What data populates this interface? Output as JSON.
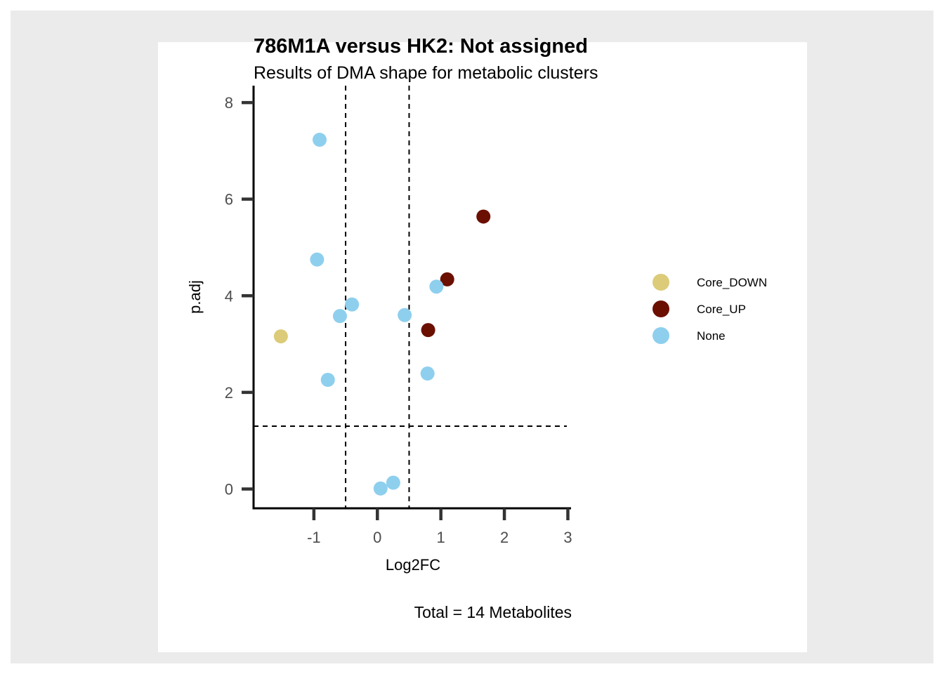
{
  "chart_data": {
    "type": "scatter",
    "title": "786M1A versus HK2: Not assigned",
    "subtitle": "Results of DMA shape for metabolic clusters",
    "xlabel": "Log2FC",
    "ylabel": "p.adj",
    "caption": "Total = 14 Metabolites",
    "xlim": [
      -1.95,
      3.05
    ],
    "ylim": [
      -0.4,
      8.35
    ],
    "xticks": [
      -1,
      0,
      1,
      2,
      3
    ],
    "xtick_labels": [
      "-1",
      "0",
      "1",
      "2",
      "3"
    ],
    "yticks": [
      0,
      2,
      4,
      6,
      8
    ],
    "ytick_labels": [
      "0",
      "2",
      "4",
      "6",
      "8"
    ],
    "thresholds": {
      "x": [
        -0.5,
        0.5
      ],
      "y": [
        1.3
      ]
    },
    "grid": false,
    "legend_position": "right",
    "colors": {
      "Core_DOWN": "#dccb78",
      "Core_UP": "#6b0f00",
      "None": "#8ecfee"
    },
    "series": [
      {
        "name": "Core_DOWN",
        "points": [
          {
            "x": -1.52,
            "y": 3.16
          }
        ]
      },
      {
        "name": "Core_UP",
        "points": [
          {
            "x": 1.67,
            "y": 5.64
          },
          {
            "x": 1.1,
            "y": 4.34
          },
          {
            "x": 0.8,
            "y": 3.29
          }
        ]
      },
      {
        "name": "None",
        "points": [
          {
            "x": -0.91,
            "y": 7.23
          },
          {
            "x": -0.95,
            "y": 4.75
          },
          {
            "x": 0.93,
            "y": 4.19
          },
          {
            "x": -0.4,
            "y": 3.82
          },
          {
            "x": -0.59,
            "y": 3.58
          },
          {
            "x": 0.43,
            "y": 3.6
          },
          {
            "x": -0.78,
            "y": 2.26
          },
          {
            "x": 0.79,
            "y": 2.39
          },
          {
            "x": 0.25,
            "y": 0.13
          },
          {
            "x": 0.05,
            "y": 0.01
          }
        ]
      }
    ]
  }
}
